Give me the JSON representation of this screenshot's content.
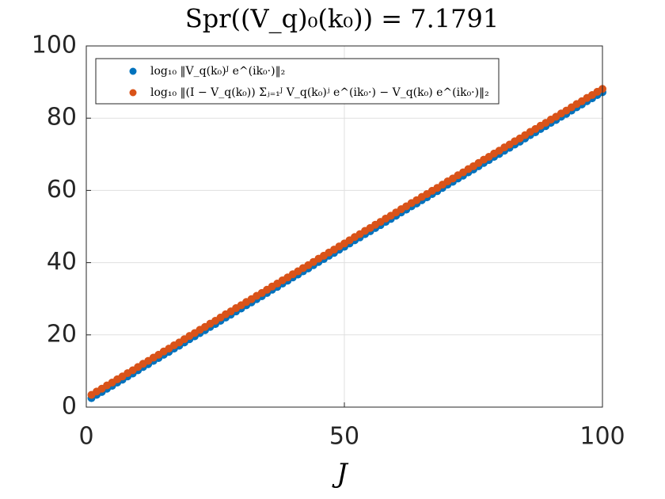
{
  "chart_data": {
    "type": "scatter",
    "title": "Spr((V_q)₀(k₀)) = 7.1791",
    "x_label": "J",
    "x": [
      1,
      2,
      3,
      4,
      5,
      6,
      7,
      8,
      9,
      10,
      11,
      12,
      13,
      14,
      15,
      16,
      17,
      18,
      19,
      20,
      21,
      22,
      23,
      24,
      25,
      26,
      27,
      28,
      29,
      30,
      31,
      32,
      33,
      34,
      35,
      36,
      37,
      38,
      39,
      40,
      41,
      42,
      43,
      44,
      45,
      46,
      47,
      48,
      49,
      50,
      51,
      52,
      53,
      54,
      55,
      56,
      57,
      58,
      59,
      60,
      61,
      62,
      63,
      64,
      65,
      66,
      67,
      68,
      69,
      70,
      71,
      72,
      73,
      74,
      75,
      76,
      77,
      78,
      79,
      80,
      81,
      82,
      83,
      84,
      85,
      86,
      87,
      88,
      89,
      90,
      91,
      92,
      93,
      94,
      95,
      96,
      97,
      98,
      99,
      100
    ],
    "series": [
      {
        "name": "log₁₀ ‖V_q(k₀)ᴶ e^(ik₀·)‖₂",
        "color": "#0072bd",
        "values": [
          2.5,
          3.4,
          4.2,
          5.1,
          5.9,
          6.8,
          7.6,
          8.5,
          9.3,
          10.2,
          11.1,
          11.9,
          12.8,
          13.6,
          14.5,
          15.3,
          16.2,
          17.0,
          17.9,
          18.8,
          19.6,
          20.5,
          21.3,
          22.2,
          23.0,
          23.9,
          24.8,
          25.6,
          26.5,
          27.3,
          28.2,
          29.0,
          29.9,
          30.7,
          31.6,
          32.5,
          33.3,
          34.2,
          35.0,
          35.9,
          36.7,
          37.6,
          38.4,
          39.3,
          40.2,
          41.0,
          41.9,
          42.7,
          43.6,
          44.4,
          45.3,
          46.2,
          47.0,
          47.9,
          48.7,
          49.6,
          50.4,
          51.3,
          52.1,
          53.0,
          53.9,
          54.7,
          55.6,
          56.4,
          57.3,
          58.1,
          59.0,
          59.8,
          60.7,
          61.6,
          62.4,
          63.3,
          64.1,
          65.0,
          65.8,
          66.7,
          67.6,
          68.4,
          69.3,
          70.1,
          71.0,
          71.8,
          72.7,
          73.5,
          74.4,
          75.3,
          76.1,
          77.0,
          77.8,
          78.7,
          79.5,
          80.4,
          81.2,
          82.1,
          83.0,
          83.8,
          84.7,
          85.5,
          86.4,
          87.2
        ]
      },
      {
        "name": "log₁₀ ‖(I − V_q(k₀)) Σⱼ₌₁ᴶ V_q(k₀)ʲ e^(ik₀·) − V_q(k₀) e^(ik₀·)‖₂",
        "color": "#d95319",
        "values": [
          3.4,
          4.3,
          5.1,
          6.0,
          6.8,
          7.7,
          8.5,
          9.4,
          10.2,
          11.1,
          12.0,
          12.8,
          13.7,
          14.5,
          15.4,
          16.2,
          17.1,
          17.9,
          18.8,
          19.7,
          20.5,
          21.4,
          22.2,
          23.1,
          23.9,
          24.8,
          25.7,
          26.5,
          27.4,
          28.2,
          29.1,
          29.9,
          30.8,
          31.6,
          32.5,
          33.4,
          34.2,
          35.1,
          35.9,
          36.8,
          37.6,
          38.5,
          39.3,
          40.2,
          41.1,
          41.9,
          42.8,
          43.6,
          44.5,
          45.3,
          46.2,
          47.1,
          47.9,
          48.8,
          49.6,
          50.5,
          51.3,
          52.2,
          53.0,
          53.9,
          54.8,
          55.6,
          56.5,
          57.3,
          58.2,
          59.0,
          59.9,
          60.7,
          61.6,
          62.5,
          63.3,
          64.2,
          65.0,
          65.9,
          66.7,
          67.6,
          68.5,
          69.3,
          70.2,
          71.0,
          71.9,
          72.7,
          73.6,
          74.4,
          75.3,
          76.2,
          77.0,
          77.9,
          78.7,
          79.6,
          80.4,
          81.3,
          82.1,
          83.0,
          83.9,
          84.7,
          85.6,
          86.4,
          87.3,
          88.1
        ]
      }
    ],
    "xlim": [
      0,
      100
    ],
    "xticks": [
      0,
      50,
      100
    ],
    "ylim": [
      0,
      100
    ],
    "yticks": [
      0,
      20,
      40,
      60,
      80,
      100
    ],
    "grid": true,
    "legend": "upper left"
  }
}
